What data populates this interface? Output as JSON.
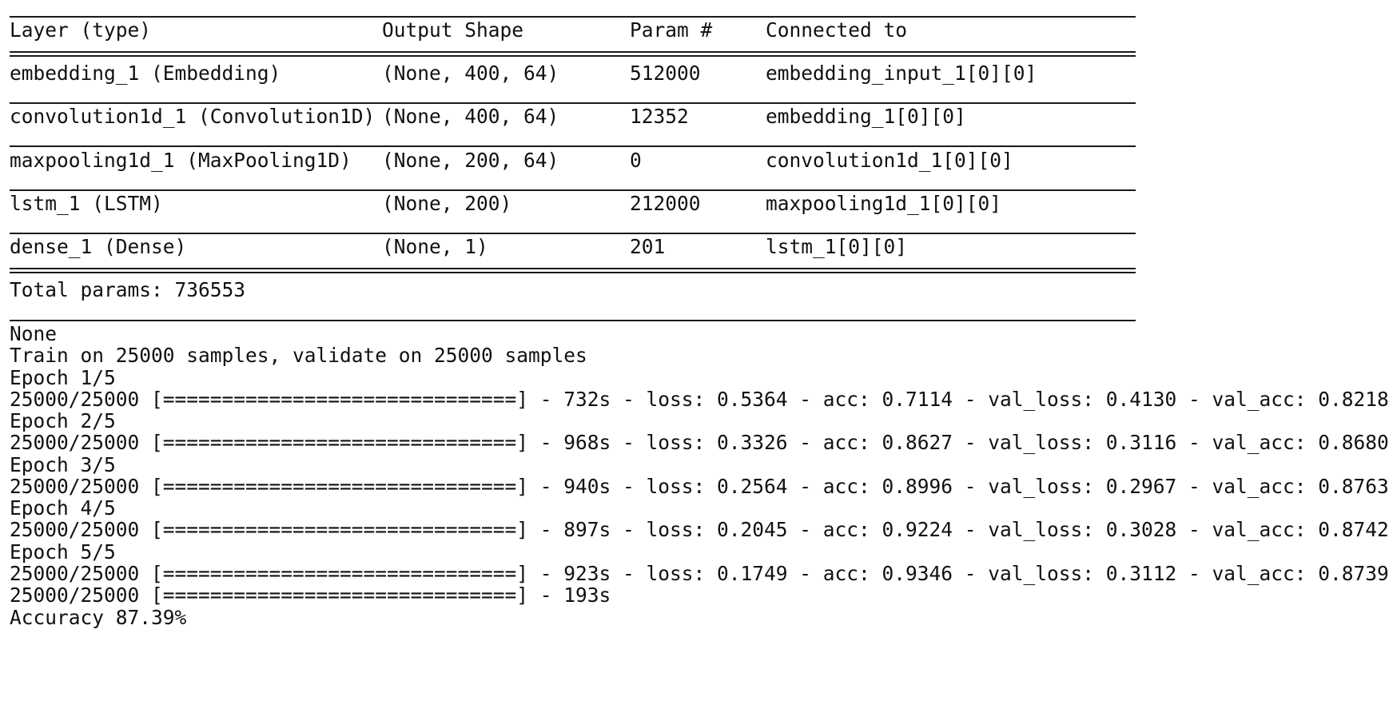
{
  "summary": {
    "headers": {
      "layer": "Layer (type)",
      "output_shape": "Output Shape",
      "params": "Param #",
      "connected": "Connected to"
    },
    "rows": [
      {
        "layer": "embedding_1 (Embedding)",
        "output_shape": "(None, 400, 64)",
        "params": "512000",
        "connected": "embedding_input_1[0][0]"
      },
      {
        "layer": "convolution1d_1 (Convolution1D)",
        "output_shape": "(None, 400, 64)",
        "params": "12352",
        "connected": "embedding_1[0][0]"
      },
      {
        "layer": "maxpooling1d_1 (MaxPooling1D)",
        "output_shape": "(None, 200, 64)",
        "params": "0",
        "connected": "convolution1d_1[0][0]"
      },
      {
        "layer": "lstm_1 (LSTM)",
        "output_shape": "(None, 200)",
        "params": "212000",
        "connected": "maxpooling1d_1[0][0]"
      },
      {
        "layer": "dense_1 (Dense)",
        "output_shape": "(None, 1)",
        "params": "201",
        "connected": "lstm_1[0][0]"
      }
    ],
    "total": "Total params: 736553"
  },
  "log": {
    "none": "None",
    "train_info": "Train on 25000 samples, validate on 25000 samples",
    "epochs": [
      {
        "header": "Epoch 1/5",
        "progress": "25000/25000 [==============================] - 732s - loss: 0.5364 - acc: 0.7114 - val_loss: 0.4130 - val_acc: 0.8218"
      },
      {
        "header": "Epoch 2/5",
        "progress": "25000/25000 [==============================] - 968s - loss: 0.3326 - acc: 0.8627 - val_loss: 0.3116 - val_acc: 0.8680"
      },
      {
        "header": "Epoch 3/5",
        "progress": "25000/25000 [==============================] - 940s - loss: 0.2564 - acc: 0.8996 - val_loss: 0.2967 - val_acc: 0.8763"
      },
      {
        "header": "Epoch 4/5",
        "progress": "25000/25000 [==============================] - 897s - loss: 0.2045 - acc: 0.9224 - val_loss: 0.3028 - val_acc: 0.8742"
      },
      {
        "header": "Epoch 5/5",
        "progress": "25000/25000 [==============================] - 923s - loss: 0.1749 - acc: 0.9346 - val_loss: 0.3112 - val_acc: 0.8739"
      }
    ],
    "eval_progress": "25000/25000 [==============================] - 193s",
    "accuracy": "Accuracy 87.39%"
  }
}
